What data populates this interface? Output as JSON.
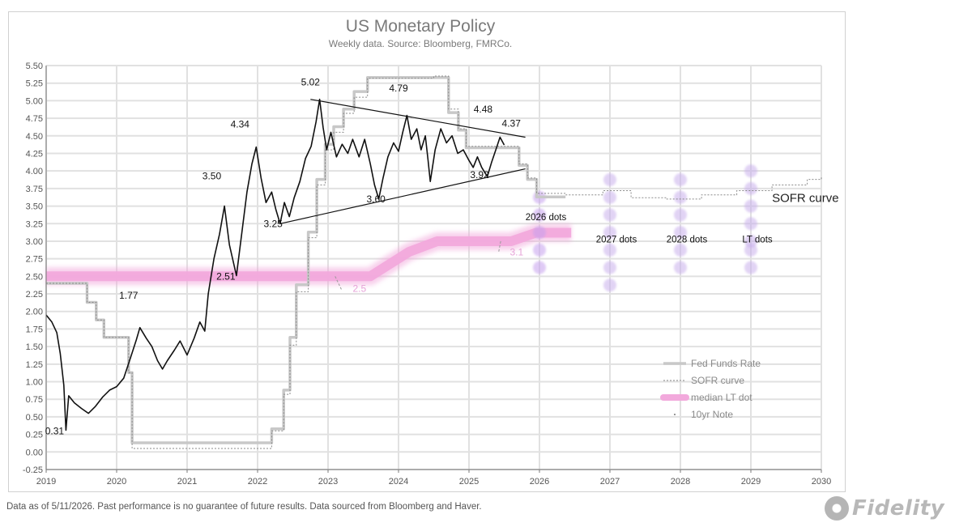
{
  "footnote": "Data as of 5/11/2026. Past performance is no guarantee of future results. Data sourced from Bloomberg and Haver.",
  "logo": {
    "text": "Fidelity",
    "icon": "fidelity-logo-icon"
  },
  "chart_data": {
    "type": "line",
    "title": "US Monetary Policy",
    "subtitle": "Weekly data.  Source: Bloomberg, FMRCo.",
    "xlim": [
      2019,
      2030
    ],
    "ylim": [
      -0.25,
      5.5
    ],
    "x_ticks": [
      "2019",
      "2020",
      "2021",
      "2022",
      "2023",
      "2024",
      "2025",
      "2026",
      "2027",
      "2028",
      "2029",
      "2030"
    ],
    "y_ticks": [
      "5.50",
      "5.25",
      "5.00",
      "4.75",
      "4.50",
      "4.25",
      "4.00",
      "3.75",
      "3.50",
      "3.25",
      "3.00",
      "2.75",
      "2.50",
      "2.25",
      "2.00",
      "1.75",
      "1.50",
      "1.25",
      "1.00",
      "0.75",
      "0.50",
      "0.25",
      "0.00",
      "-0.25"
    ],
    "grid": true,
    "legend_position": "bottom-right",
    "colors": {
      "fed_funds": "#c8c8c8",
      "sofr": "#8a8a8a",
      "median_lt": "#f2a9dc",
      "tenyr": "#111111",
      "dots": "#c9b0ec",
      "dots_2026": "#c6a0ee",
      "trend": "#111111"
    },
    "series": [
      {
        "name": "Fed Funds Rate",
        "style": "step",
        "points": [
          [
            2019.0,
            2.4
          ],
          [
            2019.58,
            2.13
          ],
          [
            2019.71,
            1.88
          ],
          [
            2019.82,
            1.63
          ],
          [
            2020.17,
            1.13
          ],
          [
            2020.22,
            0.13
          ],
          [
            2021.3,
            0.13
          ],
          [
            2022.2,
            0.33
          ],
          [
            2022.37,
            0.88
          ],
          [
            2022.46,
            1.63
          ],
          [
            2022.55,
            2.38
          ],
          [
            2022.72,
            3.13
          ],
          [
            2022.84,
            3.88
          ],
          [
            2022.96,
            4.38
          ],
          [
            2023.08,
            4.63
          ],
          [
            2023.22,
            4.88
          ],
          [
            2023.37,
            5.13
          ],
          [
            2023.56,
            5.33
          ],
          [
            2024.71,
            4.83
          ],
          [
            2024.85,
            4.58
          ],
          [
            2024.96,
            4.33
          ],
          [
            2025.71,
            4.08
          ],
          [
            2025.83,
            3.88
          ],
          [
            2025.96,
            3.63
          ],
          [
            2026.37,
            3.63
          ]
        ]
      },
      {
        "name": "SOFR curve",
        "style": "dotted",
        "points": [
          [
            2019.0,
            2.4
          ],
          [
            2019.58,
            2.13
          ],
          [
            2019.71,
            1.88
          ],
          [
            2019.82,
            1.63
          ],
          [
            2020.17,
            1.13
          ],
          [
            2020.22,
            0.05
          ],
          [
            2021.3,
            0.05
          ],
          [
            2022.2,
            0.3
          ],
          [
            2022.37,
            0.82
          ],
          [
            2022.46,
            1.52
          ],
          [
            2022.55,
            2.28
          ],
          [
            2022.72,
            3.05
          ],
          [
            2022.84,
            3.8
          ],
          [
            2022.96,
            4.3
          ],
          [
            2023.08,
            4.55
          ],
          [
            2023.22,
            4.82
          ],
          [
            2023.37,
            5.05
          ],
          [
            2023.56,
            5.32
          ],
          [
            2024.5,
            5.35
          ],
          [
            2024.71,
            4.88
          ],
          [
            2024.85,
            4.6
          ],
          [
            2024.96,
            4.35
          ],
          [
            2025.71,
            4.1
          ],
          [
            2025.83,
            3.9
          ],
          [
            2025.96,
            3.68
          ],
          [
            2026.37,
            3.66
          ],
          [
            2026.6,
            3.66
          ],
          [
            2026.9,
            3.72
          ],
          [
            2027.3,
            3.62
          ],
          [
            2027.8,
            3.6
          ],
          [
            2028.3,
            3.66
          ],
          [
            2028.8,
            3.72
          ],
          [
            2029.3,
            3.8
          ],
          [
            2029.8,
            3.88
          ],
          [
            2030.0,
            3.92
          ]
        ]
      },
      {
        "name": "median LT dot",
        "style": "band",
        "points": [
          [
            2019.0,
            2.5
          ],
          [
            2021.8,
            2.5
          ],
          [
            2023.6,
            2.5
          ],
          [
            2024.15,
            2.85
          ],
          [
            2024.55,
            3.0
          ],
          [
            2025.6,
            3.0
          ],
          [
            2025.95,
            3.12
          ],
          [
            2026.45,
            3.12
          ]
        ]
      },
      {
        "name": "10yr Note",
        "style": "line",
        "points": [
          [
            2019.0,
            1.95
          ],
          [
            2019.08,
            1.85
          ],
          [
            2019.15,
            1.7
          ],
          [
            2019.2,
            1.4
          ],
          [
            2019.25,
            0.95
          ],
          [
            2019.28,
            0.31
          ],
          [
            2019.32,
            0.8
          ],
          [
            2019.4,
            0.7
          ],
          [
            2019.5,
            0.62
          ],
          [
            2019.6,
            0.55
          ],
          [
            2019.7,
            0.65
          ],
          [
            2019.8,
            0.78
          ],
          [
            2019.9,
            0.88
          ],
          [
            2020.0,
            0.93
          ],
          [
            2020.1,
            1.05
          ],
          [
            2020.2,
            1.35
          ],
          [
            2020.28,
            1.6
          ],
          [
            2020.33,
            1.77
          ],
          [
            2020.42,
            1.62
          ],
          [
            2020.5,
            1.5
          ],
          [
            2020.58,
            1.3
          ],
          [
            2020.65,
            1.18
          ],
          [
            2020.72,
            1.3
          ],
          [
            2020.82,
            1.45
          ],
          [
            2020.9,
            1.58
          ],
          [
            2021.0,
            1.38
          ],
          [
            2021.1,
            1.62
          ],
          [
            2021.18,
            1.85
          ],
          [
            2021.25,
            1.72
          ],
          [
            2021.3,
            2.25
          ],
          [
            2021.38,
            2.75
          ],
          [
            2021.46,
            3.1
          ],
          [
            2021.53,
            3.5
          ],
          [
            2021.6,
            2.95
          ],
          [
            2021.7,
            2.51
          ],
          [
            2021.78,
            3.15
          ],
          [
            2021.85,
            3.7
          ],
          [
            2021.92,
            4.1
          ],
          [
            2021.98,
            4.34
          ],
          [
            2022.05,
            3.9
          ],
          [
            2022.12,
            3.55
          ],
          [
            2022.2,
            3.7
          ],
          [
            2022.26,
            3.45
          ],
          [
            2022.32,
            3.25
          ],
          [
            2022.38,
            3.55
          ],
          [
            2022.45,
            3.35
          ],
          [
            2022.52,
            3.62
          ],
          [
            2022.6,
            3.85
          ],
          [
            2022.68,
            4.18
          ],
          [
            2022.76,
            4.35
          ],
          [
            2022.83,
            4.7
          ],
          [
            2022.88,
            5.02
          ],
          [
            2022.93,
            4.62
          ],
          [
            2022.98,
            4.3
          ],
          [
            2023.04,
            4.55
          ],
          [
            2023.12,
            4.2
          ],
          [
            2023.2,
            4.38
          ],
          [
            2023.28,
            4.25
          ],
          [
            2023.35,
            4.45
          ],
          [
            2023.44,
            4.2
          ],
          [
            2023.52,
            4.45
          ],
          [
            2023.6,
            4.1
          ],
          [
            2023.66,
            3.8
          ],
          [
            2023.72,
            3.6
          ],
          [
            2023.78,
            3.9
          ],
          [
            2023.85,
            4.2
          ],
          [
            2023.93,
            4.4
          ],
          [
            2024.0,
            4.28
          ],
          [
            2024.06,
            4.55
          ],
          [
            2024.12,
            4.79
          ],
          [
            2024.18,
            4.45
          ],
          [
            2024.26,
            4.6
          ],
          [
            2024.32,
            4.3
          ],
          [
            2024.38,
            4.5
          ],
          [
            2024.42,
            4.15
          ],
          [
            2024.45,
            3.85
          ],
          [
            2024.52,
            4.3
          ],
          [
            2024.6,
            4.6
          ],
          [
            2024.68,
            4.4
          ],
          [
            2024.76,
            4.5
          ],
          [
            2024.84,
            4.25
          ],
          [
            2024.92,
            4.3
          ],
          [
            2025.0,
            4.15
          ],
          [
            2025.06,
            4.05
          ],
          [
            2025.12,
            4.2
          ],
          [
            2025.18,
            4.05
          ],
          [
            2025.26,
            3.92
          ],
          [
            2025.32,
            4.12
          ],
          [
            2025.38,
            4.3
          ],
          [
            2025.44,
            4.48
          ],
          [
            2025.5,
            4.37
          ]
        ]
      }
    ],
    "trend_lines": [
      {
        "points": [
          [
            2022.32,
            3.25
          ],
          [
            2025.8,
            4.03
          ]
        ]
      },
      {
        "points": [
          [
            2022.75,
            5.02
          ],
          [
            2025.8,
            4.48
          ]
        ]
      }
    ],
    "dots": [
      {
        "x": 2026,
        "label": "2026 dots",
        "values": [
          3.625,
          3.375,
          3.125,
          2.875,
          2.625
        ]
      },
      {
        "x": 2027,
        "label": "2027 dots",
        "values": [
          3.875,
          3.625,
          3.375,
          3.125,
          2.875,
          2.625,
          2.375
        ]
      },
      {
        "x": 2028,
        "label": "2028 dots",
        "values": [
          3.875,
          3.625,
          3.375,
          3.125,
          2.875,
          2.625
        ]
      },
      {
        "x": 2029,
        "label": "LT dots",
        "values": [
          4.0,
          3.75,
          3.5,
          3.25,
          3.0,
          2.875,
          2.625
        ]
      }
    ],
    "annotations": [
      {
        "text": "5.02",
        "x": 2022.75,
        "y": 5.22
      },
      {
        "text": "4.79",
        "x": 2024.0,
        "y": 5.13
      },
      {
        "text": "4.34",
        "x": 2021.75,
        "y": 4.62
      },
      {
        "text": "4.48",
        "x": 2025.2,
        "y": 4.83
      },
      {
        "text": "4.37",
        "x": 2025.6,
        "y": 4.63
      },
      {
        "text": "3.92",
        "x": 2025.15,
        "y": 3.9
      },
      {
        "text": "3.50",
        "x": 2021.35,
        "y": 3.88
      },
      {
        "text": "3.60",
        "x": 2023.68,
        "y": 3.55
      },
      {
        "text": "3.25",
        "x": 2022.22,
        "y": 3.2
      },
      {
        "text": "2.51",
        "x": 2021.55,
        "y": 2.45
      },
      {
        "text": "1.77",
        "x": 2020.17,
        "y": 2.18
      },
      {
        "text": "0.31",
        "x": 2019.12,
        "y": 0.25
      }
    ],
    "pink_labels": [
      {
        "text": "2.5",
        "x": 2023.35,
        "y": 2.28,
        "from": [
          2023.1,
          2.5
        ]
      },
      {
        "text": "3.1",
        "x": 2025.58,
        "y": 2.8,
        "from": [
          2025.45,
          3.0
        ]
      }
    ],
    "sofr_label": {
      "text": "SOFR curve",
      "x": 2029.3,
      "y": 3.56
    },
    "legend": [
      {
        "name": "Fed Funds Rate",
        "style": "step"
      },
      {
        "name": "SOFR curve",
        "style": "dotted"
      },
      {
        "name": "median LT dot",
        "style": "band"
      },
      {
        "name": "10yr Note",
        "style": "dot"
      }
    ]
  }
}
